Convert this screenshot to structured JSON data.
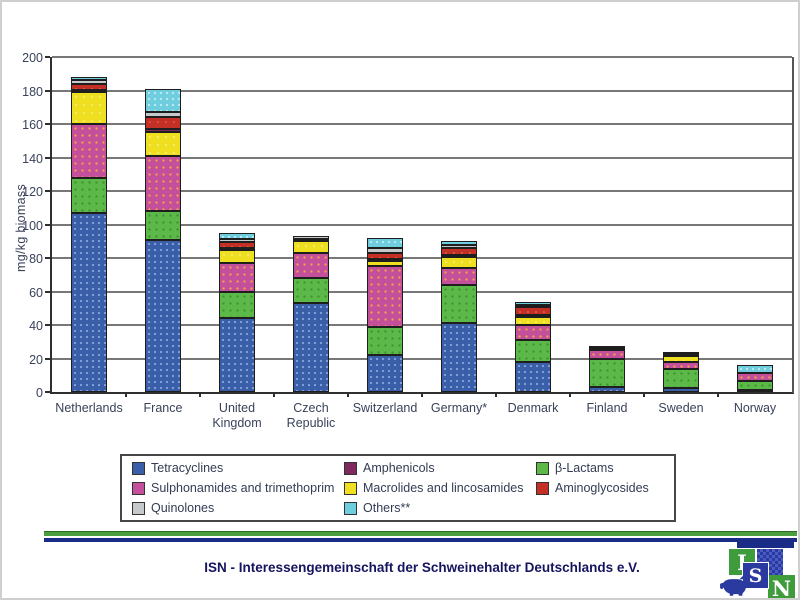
{
  "chart_data": {
    "type": "stacked_bar",
    "ylabel": "mg/kg biomass",
    "ylim": [
      0,
      200
    ],
    "yticks": [
      0,
      20,
      40,
      60,
      80,
      100,
      120,
      140,
      160,
      180,
      200
    ],
    "grid": true,
    "legend_position": "bottom-box",
    "categories": [
      "Netherlands",
      "France",
      "United Kingdom",
      "Czech Republic",
      "Switzerland",
      "Germany*",
      "Denmark",
      "Finland",
      "Sweden",
      "Norway"
    ],
    "series": [
      {
        "key": "tetracyclines",
        "label": "Tetracyclines",
        "color": "#3b5ea9",
        "values": [
          107,
          91,
          44,
          53,
          22,
          41,
          18,
          3,
          2.5,
          1
        ]
      },
      {
        "key": "beta_lactams",
        "label": "β-Lactams",
        "color": "#5cb949",
        "values": [
          21,
          17,
          16,
          15,
          17,
          23,
          13,
          16.5,
          11,
          5.5
        ]
      },
      {
        "key": "sulphonamides",
        "label": "Sulphonamides and trimethoprim",
        "color": "#c4509c",
        "values": [
          32,
          33,
          17,
          15,
          36,
          10,
          9,
          5.5,
          4.5,
          4.5
        ]
      },
      {
        "key": "macrolides",
        "label": "Macrolides and lincosamides",
        "color": "#efdf21",
        "values": [
          19,
          14,
          8,
          7,
          3.5,
          6.5,
          5,
          0,
          3.5,
          0
        ]
      },
      {
        "key": "amphenicols",
        "label": "Amphenicols",
        "color": "#7e2a5e",
        "values": [
          1,
          2,
          0.5,
          0,
          0.5,
          0.5,
          0.5,
          0,
          0,
          0
        ]
      },
      {
        "key": "aminoglycosides",
        "label": "Aminoglycosides",
        "color": "#c53026",
        "values": [
          4,
          7,
          3.5,
          1,
          3.5,
          4.5,
          4.5,
          1.5,
          1.5,
          0
        ]
      },
      {
        "key": "quinolones",
        "label": "Quinolones",
        "color": "#c6c9cc",
        "values": [
          2,
          3,
          1.5,
          2,
          3,
          1.5,
          0.5,
          1,
          1,
          0
        ]
      },
      {
        "key": "others",
        "label": "Others**",
        "color": "#6fcede",
        "values": [
          2,
          14,
          3.5,
          0,
          6,
          2.5,
          2,
          0,
          0,
          5
        ]
      }
    ]
  },
  "legend": {
    "items": [
      "tetracyclines",
      "amphenicols",
      "beta_lactams",
      "sulphonamides",
      "macrolides",
      "aminoglycosides",
      "quinolones",
      "others"
    ]
  },
  "footer": {
    "text": "ISN - Interessengemeinschaft der Schweinehalter Deutschlands e.V."
  },
  "logo": {
    "i": "I",
    "s": "S",
    "n": "N"
  }
}
